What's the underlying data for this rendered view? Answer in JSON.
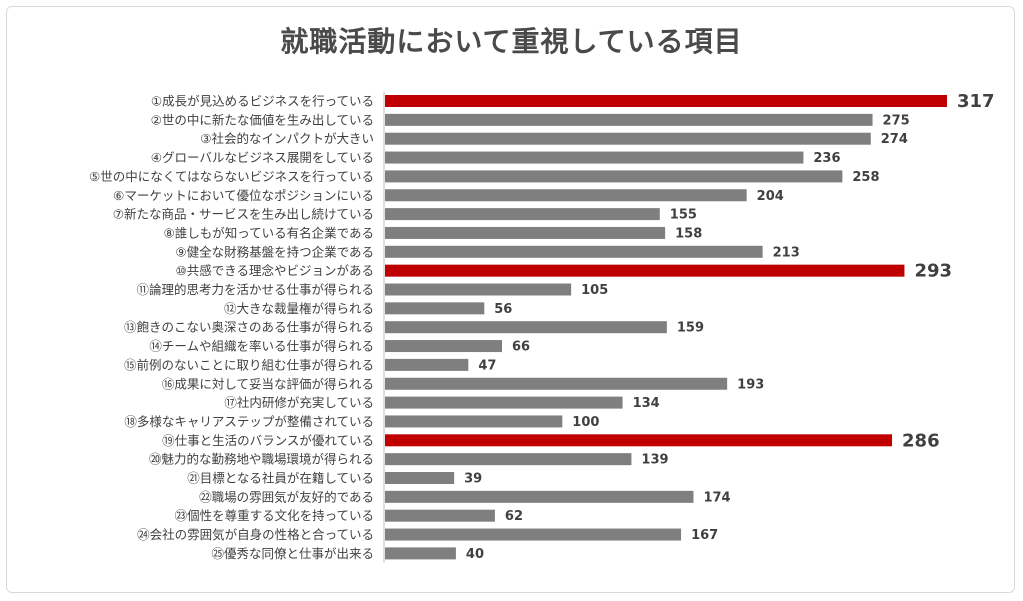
{
  "chart_data": {
    "type": "bar",
    "orientation": "horizontal",
    "title": "就職活動において重視している項目",
    "categories": [
      "①成長が見込めるビジネスを行っている",
      "②世の中に新たな価値を生み出している",
      "③社会的なインパクトが大きい",
      "④グローバルなビジネス展開をしている",
      "⑤世の中になくてはならないビジネスを行っている",
      "⑥マーケットにおいて優位なポジションにいる",
      "⑦新たな商品・サービスを生み出し続けている",
      "⑧誰しもが知っている有名企業である",
      "⑨健全な財務基盤を持つ企業である",
      "⑩共感できる理念やビジョンがある",
      "⑪論理的思考力を活かせる仕事が得られる",
      "⑫大きな裁量権が得られる",
      "⑬飽きのこない奥深さのある仕事が得られる",
      "⑭チームや組織を率いる仕事が得られる",
      "⑮前例のないことに取り組む仕事が得られる",
      "⑯成果に対して妥当な評価が得られる",
      "⑰社内研修が充実している",
      "⑱多様なキャリアステップが整備されている",
      "⑲仕事と生活のバランスが優れている",
      "⑳魅力的な勤務地や職場環境が得られる",
      "㉑目標となる社員が在籍している",
      "㉒職場の雰囲気が友好的である",
      "㉓個性を尊重する文化を持っている",
      "㉔会社の雰囲気が自身の性格と合っている",
      "㉕優秀な同僚と仕事が出来る"
    ],
    "values": [
      317,
      275,
      274,
      236,
      258,
      204,
      155,
      158,
      213,
      293,
      105,
      56,
      159,
      66,
      47,
      193,
      134,
      100,
      286,
      139,
      39,
      174,
      62,
      167,
      40
    ],
    "highlighted_indices": [
      0,
      9,
      18
    ],
    "xlim": [
      0,
      330
    ],
    "grid": false,
    "legend": "none",
    "colors": {
      "bar": "#7f7f7f",
      "highlight": "#c00000",
      "label_text": "#404040",
      "value_text": "#404040",
      "axis": "#bfbfbf",
      "title": "#4a4a4a"
    }
  }
}
